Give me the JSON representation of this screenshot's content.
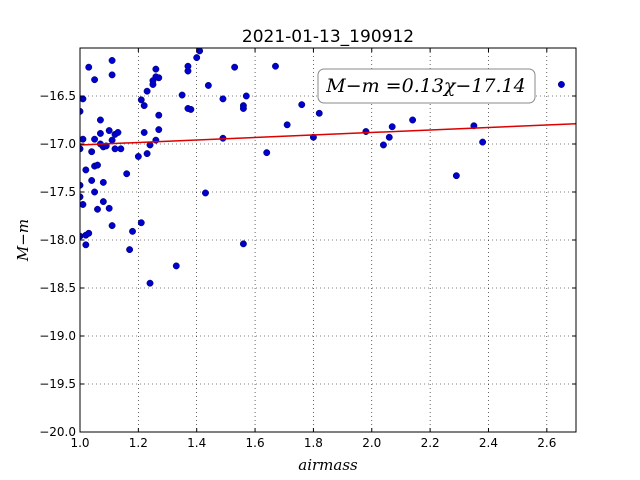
{
  "chart_data": {
    "type": "scatter",
    "title": "2021-01-13_190912",
    "xlabel": "airmass",
    "ylabel": "M−m",
    "xlim": [
      1.0,
      2.7
    ],
    "ylim": [
      -20.0,
      -16.0
    ],
    "y_inverted": true,
    "grid": true,
    "x_ticks": [
      "1.0",
      "1.2",
      "1.4",
      "1.6",
      "1.8",
      "2.0",
      "2.2",
      "2.4",
      "2.6"
    ],
    "y_ticks": [
      "−16.5",
      "−17.0",
      "−17.5",
      "−18.0",
      "−18.5",
      "−19.0",
      "−19.5",
      "−20.0"
    ],
    "annotation": "M−m =0.13χ−17.14",
    "annotation_placement": "top-right",
    "marker_color": "#0000cc",
    "fit_color": "#dd0000",
    "fit_line": {
      "slope": 0.13,
      "intercept": -17.14,
      "x": [
        1.0,
        2.7
      ]
    },
    "points": [
      {
        "x": 1.0,
        "y": -16.66
      },
      {
        "x": 1.0,
        "y": -17.05
      },
      {
        "x": 1.0,
        "y": -17.43
      },
      {
        "x": 1.0,
        "y": -17.55
      },
      {
        "x": 1.0,
        "y": -17.96
      },
      {
        "x": 1.01,
        "y": -16.53
      },
      {
        "x": 1.01,
        "y": -16.95
      },
      {
        "x": 1.01,
        "y": -17.63
      },
      {
        "x": 1.02,
        "y": -17.27
      },
      {
        "x": 1.02,
        "y": -17.95
      },
      {
        "x": 1.02,
        "y": -18.05
      },
      {
        "x": 1.03,
        "y": -16.2
      },
      {
        "x": 1.03,
        "y": -17.93
      },
      {
        "x": 1.04,
        "y": -17.08
      },
      {
        "x": 1.04,
        "y": -17.38
      },
      {
        "x": 1.05,
        "y": -16.33
      },
      {
        "x": 1.05,
        "y": -16.95
      },
      {
        "x": 1.05,
        "y": -17.23
      },
      {
        "x": 1.05,
        "y": -17.5
      },
      {
        "x": 1.06,
        "y": -17.22
      },
      {
        "x": 1.06,
        "y": -17.68
      },
      {
        "x": 1.07,
        "y": -16.75
      },
      {
        "x": 1.07,
        "y": -16.89
      },
      {
        "x": 1.07,
        "y": -17.0
      },
      {
        "x": 1.08,
        "y": -17.03
      },
      {
        "x": 1.08,
        "y": -17.4
      },
      {
        "x": 1.08,
        "y": -17.6
      },
      {
        "x": 1.09,
        "y": -17.02
      },
      {
        "x": 1.1,
        "y": -16.86
      },
      {
        "x": 1.1,
        "y": -17.67
      },
      {
        "x": 1.11,
        "y": -16.13
      },
      {
        "x": 1.11,
        "y": -16.28
      },
      {
        "x": 1.11,
        "y": -16.96
      },
      {
        "x": 1.11,
        "y": -17.85
      },
      {
        "x": 1.12,
        "y": -16.9
      },
      {
        "x": 1.12,
        "y": -17.05
      },
      {
        "x": 1.13,
        "y": -16.88
      },
      {
        "x": 1.14,
        "y": -17.05
      },
      {
        "x": 1.16,
        "y": -17.31
      },
      {
        "x": 1.17,
        "y": -18.1
      },
      {
        "x": 1.18,
        "y": -17.91
      },
      {
        "x": 1.2,
        "y": -17.13
      },
      {
        "x": 1.21,
        "y": -16.54
      },
      {
        "x": 1.21,
        "y": -17.82
      },
      {
        "x": 1.22,
        "y": -16.6
      },
      {
        "x": 1.22,
        "y": -16.88
      },
      {
        "x": 1.23,
        "y": -17.1
      },
      {
        "x": 1.23,
        "y": -16.45
      },
      {
        "x": 1.24,
        "y": -17.01
      },
      {
        "x": 1.24,
        "y": -18.45
      },
      {
        "x": 1.25,
        "y": -16.34
      },
      {
        "x": 1.25,
        "y": -16.38
      },
      {
        "x": 1.26,
        "y": -16.22
      },
      {
        "x": 1.26,
        "y": -16.3
      },
      {
        "x": 1.26,
        "y": -16.96
      },
      {
        "x": 1.27,
        "y": -16.31
      },
      {
        "x": 1.27,
        "y": -16.7
      },
      {
        "x": 1.27,
        "y": -16.85
      },
      {
        "x": 1.33,
        "y": -18.27
      },
      {
        "x": 1.35,
        "y": -16.49
      },
      {
        "x": 1.37,
        "y": -16.24
      },
      {
        "x": 1.37,
        "y": -16.19
      },
      {
        "x": 1.37,
        "y": -16.63
      },
      {
        "x": 1.38,
        "y": -16.64
      },
      {
        "x": 1.4,
        "y": -16.1
      },
      {
        "x": 1.41,
        "y": -16.03
      },
      {
        "x": 1.43,
        "y": -17.51
      },
      {
        "x": 1.44,
        "y": -16.39
      },
      {
        "x": 1.49,
        "y": -16.53
      },
      {
        "x": 1.49,
        "y": -16.94
      },
      {
        "x": 1.53,
        "y": -16.2
      },
      {
        "x": 1.56,
        "y": -16.6
      },
      {
        "x": 1.56,
        "y": -16.63
      },
      {
        "x": 1.56,
        "y": -18.04
      },
      {
        "x": 1.57,
        "y": -16.5
      },
      {
        "x": 1.64,
        "y": -17.09
      },
      {
        "x": 1.67,
        "y": -16.19
      },
      {
        "x": 1.71,
        "y": -16.8
      },
      {
        "x": 1.76,
        "y": -16.59
      },
      {
        "x": 1.8,
        "y": -16.93
      },
      {
        "x": 1.82,
        "y": -16.68
      },
      {
        "x": 1.98,
        "y": -16.87
      },
      {
        "x": 2.04,
        "y": -17.01
      },
      {
        "x": 2.06,
        "y": -16.93
      },
      {
        "x": 2.07,
        "y": -16.82
      },
      {
        "x": 2.14,
        "y": -16.75
      },
      {
        "x": 2.29,
        "y": -17.33
      },
      {
        "x": 2.35,
        "y": -16.81
      },
      {
        "x": 2.38,
        "y": -16.98
      },
      {
        "x": 2.65,
        "y": -16.38
      }
    ]
  }
}
